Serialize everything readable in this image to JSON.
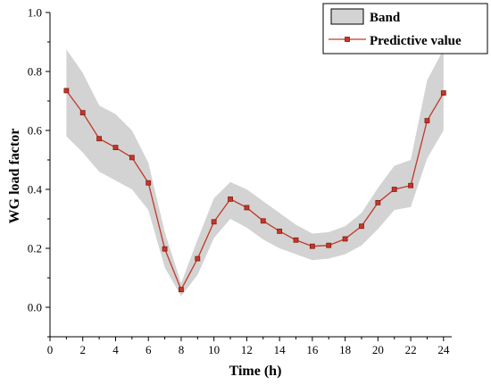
{
  "chart_data": {
    "type": "line",
    "xlabel": "Time (h)",
    "ylabel": "WG load factor",
    "xlim": [
      0,
      24.5
    ],
    "ylim": [
      -0.1,
      1.0
    ],
    "x_ticks": [
      0,
      2,
      4,
      6,
      8,
      10,
      12,
      14,
      16,
      18,
      20,
      22,
      24
    ],
    "y_ticks": [
      0.0,
      0.2,
      0.4,
      0.6,
      0.8,
      1.0
    ],
    "x_tick_labels": [
      "0",
      "2",
      "4",
      "6",
      "8",
      "10",
      "12",
      "14",
      "16",
      "18",
      "20",
      "22",
      "24"
    ],
    "y_tick_labels": [
      "0.0",
      "0.2",
      "0.4",
      "0.6",
      "0.8",
      "1.0"
    ],
    "x": [
      1,
      2,
      3,
      4,
      5,
      6,
      7,
      8,
      9,
      10,
      11,
      12,
      13,
      14,
      15,
      16,
      17,
      18,
      19,
      20,
      21,
      22,
      23,
      24
    ],
    "series": [
      {
        "name": "Predictive value",
        "color": "#c0392b",
        "values": [
          0.735,
          0.66,
          0.572,
          0.542,
          0.508,
          0.422,
          0.198,
          0.06,
          0.165,
          0.29,
          0.367,
          0.338,
          0.293,
          0.258,
          0.228,
          0.207,
          0.21,
          0.232,
          0.275,
          0.355,
          0.4,
          0.413,
          0.633,
          0.727
        ]
      }
    ],
    "band": {
      "name": "Band",
      "color": "#d3d3d3",
      "upper": [
        0.875,
        0.795,
        0.685,
        0.655,
        0.6,
        0.49,
        0.255,
        0.082,
        0.23,
        0.37,
        0.425,
        0.4,
        0.36,
        0.32,
        0.28,
        0.25,
        0.255,
        0.275,
        0.32,
        0.405,
        0.48,
        0.5,
        0.77,
        0.875
      ],
      "lower": [
        0.58,
        0.525,
        0.46,
        0.43,
        0.4,
        0.33,
        0.135,
        0.038,
        0.11,
        0.235,
        0.3,
        0.27,
        0.23,
        0.2,
        0.18,
        0.16,
        0.165,
        0.18,
        0.21,
        0.265,
        0.33,
        0.34,
        0.505,
        0.6
      ]
    },
    "legend": {
      "position": "top-right",
      "entries": [
        "Band",
        "Predictive value"
      ]
    }
  }
}
